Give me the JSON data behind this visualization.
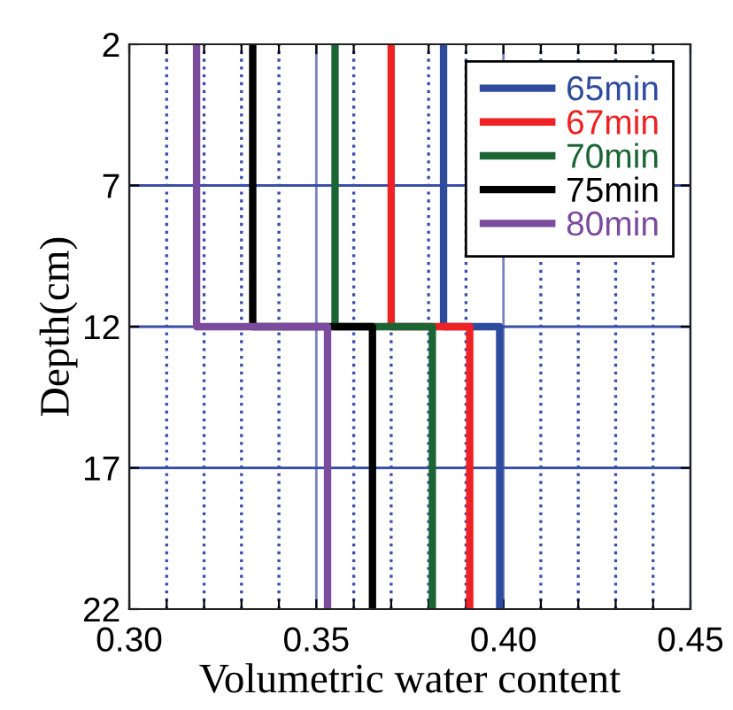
{
  "chart_data": {
    "type": "line",
    "xlabel": "Volumetric water content",
    "ylabel": "Depth(cm)",
    "xlim": [
      0.3,
      0.45
    ],
    "ylim": [
      22,
      2
    ],
    "xticks": [
      {
        "value": 0.3,
        "label": "0.30"
      },
      {
        "value": 0.31,
        "label": null
      },
      {
        "value": 0.32,
        "label": null
      },
      {
        "value": 0.33,
        "label": null
      },
      {
        "value": 0.34,
        "label": null
      },
      {
        "value": 0.35,
        "label": "0.35"
      },
      {
        "value": 0.36,
        "label": null
      },
      {
        "value": 0.37,
        "label": null
      },
      {
        "value": 0.38,
        "label": null
      },
      {
        "value": 0.39,
        "label": null
      },
      {
        "value": 0.4,
        "label": "0.40"
      },
      {
        "value": 0.41,
        "label": null
      },
      {
        "value": 0.42,
        "label": null
      },
      {
        "value": 0.43,
        "label": null
      },
      {
        "value": 0.44,
        "label": null
      },
      {
        "value": 0.45,
        "label": "0.45"
      }
    ],
    "yticks": [
      2,
      7,
      12,
      17,
      22
    ],
    "grid": true,
    "legend": "top right",
    "line_style": "solid",
    "marker": "none",
    "series": [
      {
        "name": "65min",
        "color": "#2e4b9e",
        "x": [
          0.384,
          0.384,
          0.399,
          0.399
        ],
        "values": [
          2,
          12,
          12,
          22
        ]
      },
      {
        "name": "67min",
        "color": "#ee2224",
        "x": [
          0.37,
          0.37,
          0.391,
          0.391
        ],
        "values": [
          2,
          12,
          12,
          22
        ]
      },
      {
        "name": "70min",
        "color": "#1b6535",
        "x": [
          0.355,
          0.355,
          0.381,
          0.381
        ],
        "values": [
          2,
          12,
          12,
          22
        ]
      },
      {
        "name": "75min",
        "color": "#000000",
        "x": [
          0.333,
          0.333,
          0.365,
          0.365
        ],
        "values": [
          2,
          12,
          12,
          22
        ]
      },
      {
        "name": "80min",
        "color": "#7b4c9e",
        "x": [
          0.318,
          0.318,
          0.353,
          0.353
        ],
        "values": [
          2,
          12,
          12,
          22
        ]
      }
    ]
  }
}
